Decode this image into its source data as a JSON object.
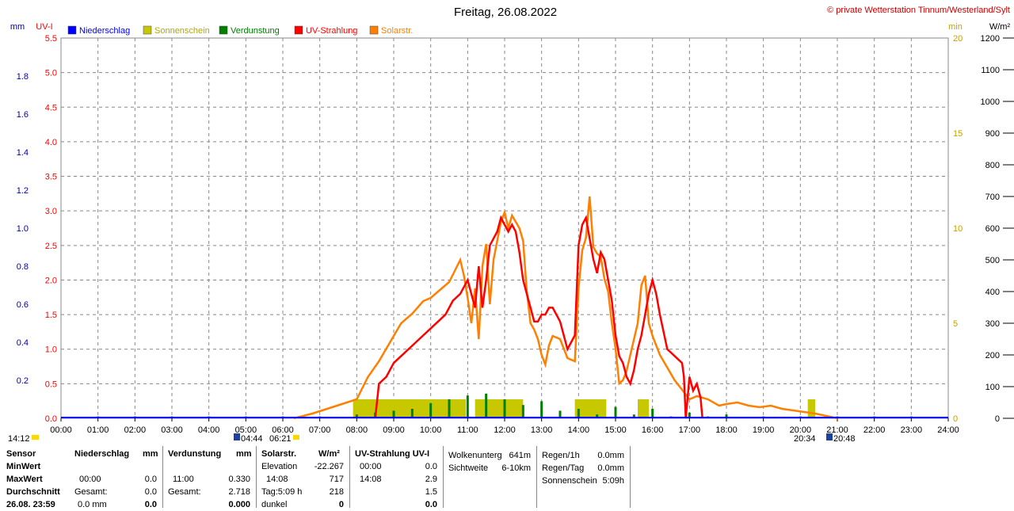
{
  "title": "Freitag, 26.08.2022",
  "credit": "© private Wetterstation Tinnum/Westerland/Sylt",
  "unit_mm": "mm",
  "unit_uv": "UV-I",
  "unit_min": "min",
  "unit_wm2": "W/m²",
  "legend": [
    {
      "label": "Niederschlag",
      "color": "#0000ff"
    },
    {
      "label": "Sonnenschein",
      "color": "#c8c800"
    },
    {
      "label": "Verdunstung",
      "color": "#008000"
    },
    {
      "label": "UV-Strahlung",
      "color": "#ff0000"
    },
    {
      "label": "Solarstr.",
      "color": "#ff8000"
    }
  ],
  "chart_data": {
    "type": "line",
    "x_ticks": [
      "00:00",
      "01:00",
      "02:00",
      "03:00",
      "04:00",
      "05:00",
      "06:00",
      "07:00",
      "08:00",
      "09:00",
      "10:00",
      "11:00",
      "12:00",
      "13:00",
      "14:00",
      "15:00",
      "16:00",
      "17:00",
      "18:00",
      "19:00",
      "20:00",
      "21:00",
      "22:00",
      "23:00",
      "24:00"
    ],
    "axes": {
      "uv": {
        "ticks": [
          "0.0",
          "0.5",
          "1.0",
          "1.5",
          "2.0",
          "2.5",
          "3.0",
          "3.5",
          "4.0",
          "4.5",
          "5.0",
          "5.5"
        ],
        "ylim": [
          0,
          5.5
        ],
        "color": "#ff0000"
      },
      "mm": {
        "ticks": [
          "0.2",
          "0.4",
          "0.6",
          "0.8",
          "1.0",
          "1.2",
          "1.4",
          "1.6",
          "1.8"
        ],
        "ylim": [
          0,
          2.0
        ],
        "color": "#0000aa"
      },
      "min": {
        "ticks": [
          "0",
          "5",
          "10",
          "15",
          "20"
        ],
        "ylim": [
          0,
          20
        ],
        "color": "#c8a000"
      },
      "wm2": {
        "ticks": [
          "0",
          "100",
          "200",
          "300",
          "400",
          "500",
          "600",
          "700",
          "800",
          "900",
          "1000",
          "1100",
          "1200"
        ],
        "ylim": [
          0,
          1200
        ],
        "color": "#000000"
      }
    },
    "solar_wm2": {
      "x": [
        6.3,
        6.8,
        7.2,
        7.6,
        8.0,
        8.3,
        8.6,
        8.9,
        9.2,
        9.5,
        9.8,
        10.0,
        10.2,
        10.5,
        10.8,
        10.9,
        11.0,
        11.1,
        11.2,
        11.3,
        11.4,
        11.5,
        11.6,
        11.7,
        11.8,
        11.9,
        12.0,
        12.1,
        12.2,
        12.3,
        12.4,
        12.5,
        12.6,
        12.7,
        12.8,
        12.9,
        13.0,
        13.1,
        13.2,
        13.3,
        13.5,
        13.7,
        13.9,
        14.0,
        14.1,
        14.2,
        14.3,
        14.4,
        14.5,
        14.6,
        14.7,
        14.8,
        14.9,
        15.0,
        15.1,
        15.2,
        15.3,
        15.4,
        15.5,
        15.6,
        15.7,
        15.8,
        15.9,
        16.0,
        16.2,
        16.4,
        16.6,
        16.8,
        17.0,
        17.2,
        17.5,
        17.8,
        18.0,
        18.3,
        18.6,
        18.9,
        19.2,
        19.5,
        19.8,
        20.1,
        20.4,
        20.6,
        20.8,
        21.0
      ],
      "y": [
        0,
        15,
        30,
        45,
        60,
        130,
        180,
        240,
        300,
        330,
        370,
        380,
        400,
        430,
        500,
        450,
        380,
        300,
        410,
        250,
        480,
        550,
        360,
        500,
        560,
        620,
        650,
        600,
        640,
        620,
        600,
        560,
        400,
        300,
        280,
        250,
        200,
        170,
        230,
        260,
        250,
        190,
        180,
        410,
        530,
        570,
        700,
        540,
        520,
        510,
        440,
        400,
        300,
        220,
        110,
        120,
        150,
        200,
        250,
        300,
        420,
        450,
        300,
        260,
        200,
        160,
        120,
        90,
        60,
        70,
        60,
        40,
        45,
        50,
        40,
        35,
        40,
        30,
        25,
        20,
        15,
        10,
        5,
        0
      ]
    },
    "uv_index": {
      "x": [
        8.5,
        8.6,
        8.8,
        9.0,
        9.2,
        9.4,
        9.6,
        9.8,
        10.0,
        10.2,
        10.4,
        10.6,
        10.8,
        10.9,
        11.0,
        11.1,
        11.2,
        11.3,
        11.4,
        11.5,
        11.6,
        11.7,
        11.8,
        11.9,
        12.0,
        12.1,
        12.2,
        12.3,
        12.4,
        12.5,
        12.6,
        12.7,
        12.8,
        12.9,
        13.0,
        13.1,
        13.2,
        13.3,
        13.5,
        13.7,
        13.9,
        14.0,
        14.1,
        14.2,
        14.3,
        14.4,
        14.5,
        14.6,
        14.7,
        14.8,
        14.9,
        15.0,
        15.1,
        15.2,
        15.3,
        15.4,
        15.5,
        15.6,
        15.7,
        15.8,
        15.9,
        16.0,
        16.1,
        16.2,
        16.4,
        16.6,
        16.8,
        16.85,
        16.9,
        17.0,
        17.1,
        17.2,
        17.3,
        17.35
      ],
      "y": [
        0.0,
        0.5,
        0.6,
        0.8,
        0.9,
        1.0,
        1.1,
        1.2,
        1.3,
        1.4,
        1.5,
        1.7,
        1.8,
        1.9,
        2.0,
        1.8,
        1.6,
        2.2,
        1.6,
        2.0,
        2.5,
        2.6,
        2.7,
        2.9,
        2.8,
        2.7,
        2.8,
        2.7,
        2.4,
        2.0,
        1.8,
        1.6,
        1.4,
        1.4,
        1.5,
        1.5,
        1.6,
        1.6,
        1.4,
        1.0,
        1.2,
        2.5,
        2.8,
        2.9,
        2.6,
        2.3,
        2.1,
        2.4,
        2.3,
        2.0,
        1.7,
        1.2,
        0.9,
        0.8,
        0.6,
        0.5,
        0.7,
        1.0,
        1.2,
        1.5,
        1.8,
        2.0,
        1.8,
        1.5,
        1.0,
        0.9,
        0.8,
        0.6,
        0.0,
        0.6,
        0.4,
        0.5,
        0.3,
        0.0
      ]
    },
    "sunshine_min": [
      {
        "from": 7.9,
        "to": 10.95,
        "y": 1.0
      },
      {
        "from": 11.2,
        "to": 12.5,
        "y": 1.0
      },
      {
        "from": 13.9,
        "to": 14.75,
        "y": 1.0
      },
      {
        "from": 15.6,
        "to": 15.9,
        "y": 1.0
      },
      {
        "from": 20.2,
        "to": 20.4,
        "y": 1.0
      }
    ],
    "evaporation_mm": {
      "x": [
        1,
        2,
        3,
        4,
        5,
        6,
        7,
        8,
        8.5,
        9,
        9.5,
        10,
        10.5,
        11,
        11.5,
        12,
        12.5,
        13,
        13.5,
        14,
        14.5,
        15,
        15.5,
        16,
        16.5,
        17,
        17.5,
        18,
        19,
        20,
        21,
        22,
        23
      ],
      "y": [
        0.01,
        0.01,
        0.01,
        0.01,
        0.01,
        0.01,
        0.01,
        0.02,
        0.03,
        0.04,
        0.05,
        0.08,
        0.1,
        0.12,
        0.13,
        0.1,
        0.07,
        0.09,
        0.04,
        0.05,
        0.02,
        0.06,
        0.02,
        0.05,
        0.01,
        0.03,
        0.01,
        0.02,
        0.01,
        0.01,
        0.01,
        0.01,
        0.01
      ]
    }
  },
  "sun_info": {
    "time_left": "14:12",
    "sunrise1": "04:44",
    "sunrise2": "06:21",
    "sunset1": "20:34",
    "sunset2": "20:48"
  },
  "stats": {
    "row_labels": [
      "Sensor",
      "MinWert",
      "MaxWert",
      "Durchschnitt",
      "26.08. 23:59"
    ],
    "niederschlag": {
      "title": "Niederschlag",
      "unit": "mm",
      "max_time": "00:00",
      "max_val": "0.0",
      "total_label": "Gesamt:",
      "total_val": "0.0",
      "last_val": "0.0 mm",
      "last_right": "0.0"
    },
    "verdunstung": {
      "title": "Verdunstung",
      "unit": "mm",
      "max_time": "11:00",
      "max_val": "0.330",
      "total_label": "Gesamt:",
      "total_val": "2.718",
      "last_right": "0.000"
    },
    "solar": {
      "title": "Solarstr.",
      "unit": "W/m²",
      "elev_label": "Elevation",
      "elev_val": "-22.267",
      "max_time": "14:08",
      "max_val": "717",
      "day_label": "Tag:5:09 h",
      "day_val": "218",
      "dark_label": "dunkel",
      "dark_val": "0"
    },
    "uv": {
      "title": "UV-Strahlung UV-I",
      "min_time": "00:00",
      "min_val": "0.0",
      "max_time": "14:08",
      "max_val": "2.9",
      "avg_val": "1.5",
      "last_val": "0.0"
    },
    "clouds": {
      "base_label": "Wolkenunterg",
      "base_val": "641m",
      "vis_label": "Sichtweite",
      "vis_val": "6-10km"
    },
    "rain": {
      "h_label": "Regen/1h",
      "h_val": "0.0mm",
      "d_label": "Regen/Tag",
      "d_val": "0.0mm",
      "sun_label": "Sonnenschein",
      "sun_val": "5:09h"
    }
  }
}
